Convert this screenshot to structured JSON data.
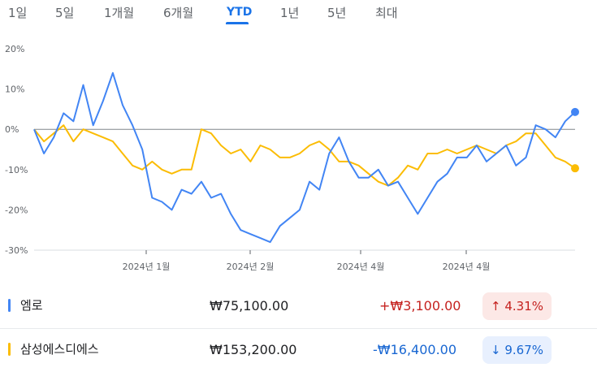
{
  "tabs": [
    {
      "label": "1일",
      "active": false
    },
    {
      "label": "5일",
      "active": false
    },
    {
      "label": "1개월",
      "active": false
    },
    {
      "label": "6개월",
      "active": false
    },
    {
      "label": "YTD",
      "active": true
    },
    {
      "label": "1년",
      "active": false
    },
    {
      "label": "5년",
      "active": false
    },
    {
      "label": "최대",
      "active": false
    }
  ],
  "colors": {
    "series1": "#4285f4",
    "series2": "#fbbc04",
    "up": "#c5221f",
    "down": "#1967d2",
    "active": "#1a73e8"
  },
  "chart_data": {
    "type": "line",
    "ylabel": "",
    "xlabel": "",
    "ylim": [
      -30,
      20
    ],
    "y_ticks": [
      "20%",
      "10%",
      "0%",
      "-10%",
      "-20%",
      "-30%"
    ],
    "x_ticks": [
      "2024년 1월",
      "2024년 2월",
      "2024년 4월",
      "2024년 4월"
    ],
    "grid": false,
    "series": [
      {
        "name": "엠로",
        "values": [
          0,
          -6,
          -2,
          4,
          2,
          11,
          1,
          7,
          14,
          6,
          1,
          -5,
          -17,
          -18,
          -20,
          -15,
          -16,
          -13,
          -17,
          -16,
          -21,
          -25,
          -26,
          -27,
          -28,
          -24,
          -22,
          -20,
          -13,
          -15,
          -6,
          -2,
          -8,
          -12,
          -12,
          -10,
          -14,
          -13,
          -17,
          -21,
          -17,
          -13,
          -11,
          -7,
          -7,
          -4,
          -8,
          -6,
          -4,
          -9,
          -7,
          1,
          0,
          -2,
          2,
          4.3
        ]
      },
      {
        "name": "삼성에스디에스",
        "values": [
          0,
          -3,
          -1,
          1,
          -3,
          0,
          -1,
          -2,
          -3,
          -6,
          -9,
          -10,
          -8,
          -10,
          -11,
          -10,
          -10,
          0,
          -1,
          -4,
          -6,
          -5,
          -8,
          -4,
          -5,
          -7,
          -7,
          -6,
          -4,
          -3,
          -5,
          -8,
          -8,
          -9,
          -11,
          -13,
          -14,
          -12,
          -9,
          -10,
          -6,
          -6,
          -5,
          -6,
          -5,
          -4,
          -5,
          -6,
          -4,
          -3,
          -1,
          -1,
          -4,
          -7,
          -8,
          -9.67
        ]
      }
    ]
  },
  "rows": [
    {
      "name": "엠로",
      "price": "₩75,100.00",
      "change": "+₩3,100.00",
      "pct": "4.31%",
      "arrow": "↑"
    },
    {
      "name": "삼성에스디에스",
      "price": "₩153,200.00",
      "change": "-₩16,400.00",
      "pct": "9.67%",
      "arrow": "↓"
    }
  ]
}
